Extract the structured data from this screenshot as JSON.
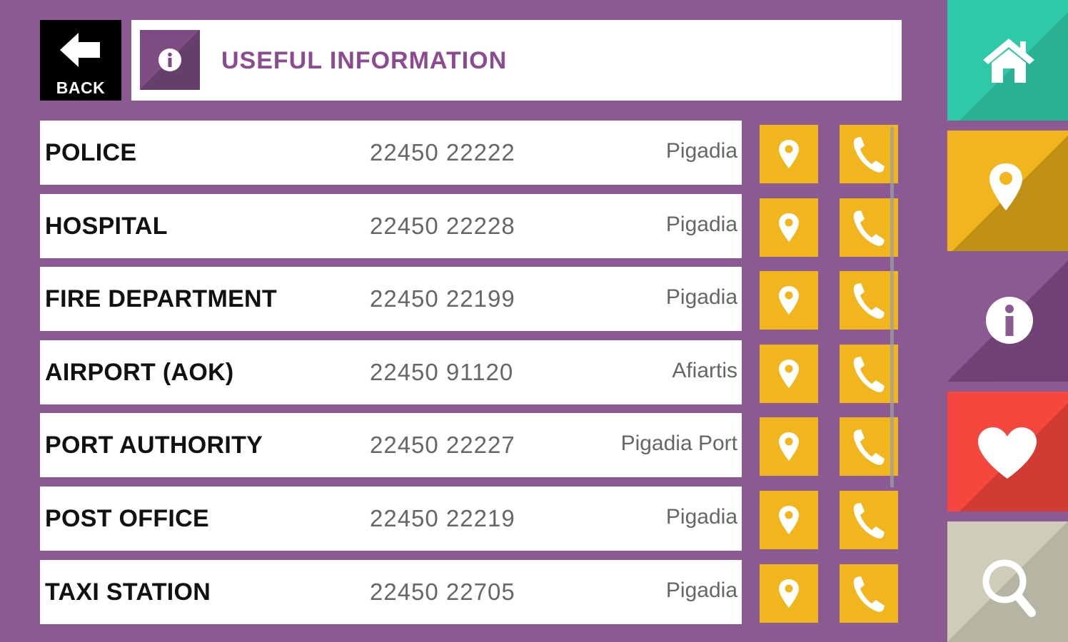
{
  "header": {
    "back_label": "BACK",
    "title": "USEFUL INFORMATION"
  },
  "contacts": [
    {
      "name": "POLICE",
      "phone": "22450 22222",
      "location": "Pigadia"
    },
    {
      "name": "HOSPITAL",
      "phone": "22450 22228",
      "location": "Pigadia"
    },
    {
      "name": "FIRE DEPARTMENT",
      "phone": "22450 22199",
      "location": "Pigadia"
    },
    {
      "name": "AIRPORT (AOK)",
      "phone": "22450 91120",
      "location": "Afiartis"
    },
    {
      "name": "PORT AUTHORITY",
      "phone": "22450 22227",
      "location": "Pigadia Port"
    },
    {
      "name": "POST OFFICE",
      "phone": "22450 22219",
      "location": "Pigadia"
    },
    {
      "name": "TAXI STATION",
      "phone": "22450 22705",
      "location": "Pigadia"
    }
  ],
  "icons": {
    "back": "arrow-left-icon",
    "info": "info-icon",
    "map": "map-pin-icon",
    "call": "phone-icon"
  },
  "side_nav": [
    {
      "id": "home",
      "icon": "home-icon",
      "color": "#2ec9a6"
    },
    {
      "id": "map",
      "icon": "map-pin-icon",
      "color": "#f1b51d"
    },
    {
      "id": "info",
      "icon": "info-icon",
      "color": "#8c5a93",
      "active": true
    },
    {
      "id": "favorites",
      "icon": "heart-icon",
      "color": "#f4473d"
    },
    {
      "id": "search",
      "icon": "search-icon",
      "color": "#cfcdb9"
    }
  ],
  "colors": {
    "background": "#8c5a93",
    "accent_title": "#8c4a90",
    "button_yellow": "#f1b51d"
  }
}
